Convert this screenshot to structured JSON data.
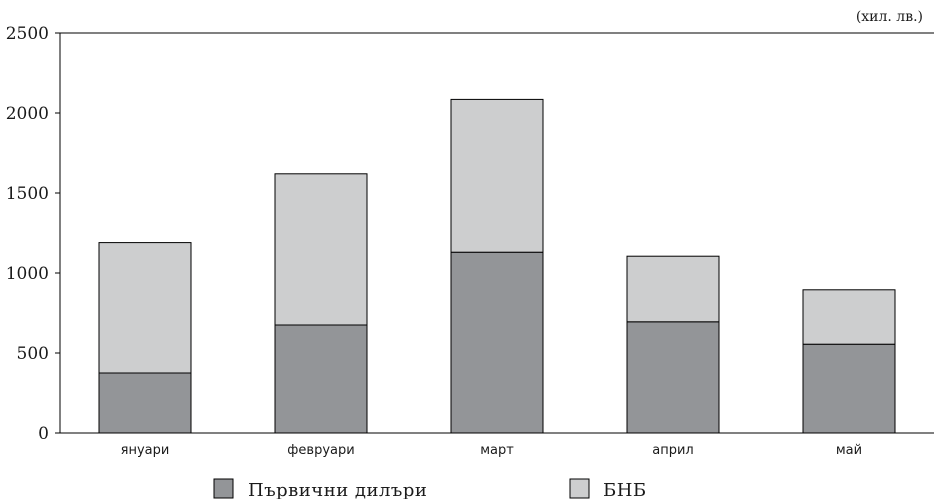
{
  "chart_data": {
    "type": "bar",
    "stacked": true,
    "unit_label": "(хил. лв.)",
    "categories": [
      "януари",
      "февруари",
      "март",
      "април",
      "май"
    ],
    "series": [
      {
        "name": "Първични дилъри",
        "color": "#939598",
        "values": [
          375,
          675,
          1130,
          695,
          555
        ]
      },
      {
        "name": "БНБ",
        "color": "#cdcecf",
        "values": [
          815,
          945,
          955,
          410,
          340
        ]
      }
    ],
    "ylim": [
      0,
      2500
    ],
    "yticks": [
      0,
      500,
      1000,
      1500,
      2000,
      2500
    ],
    "legend_position": "bottom",
    "grid": false
  }
}
